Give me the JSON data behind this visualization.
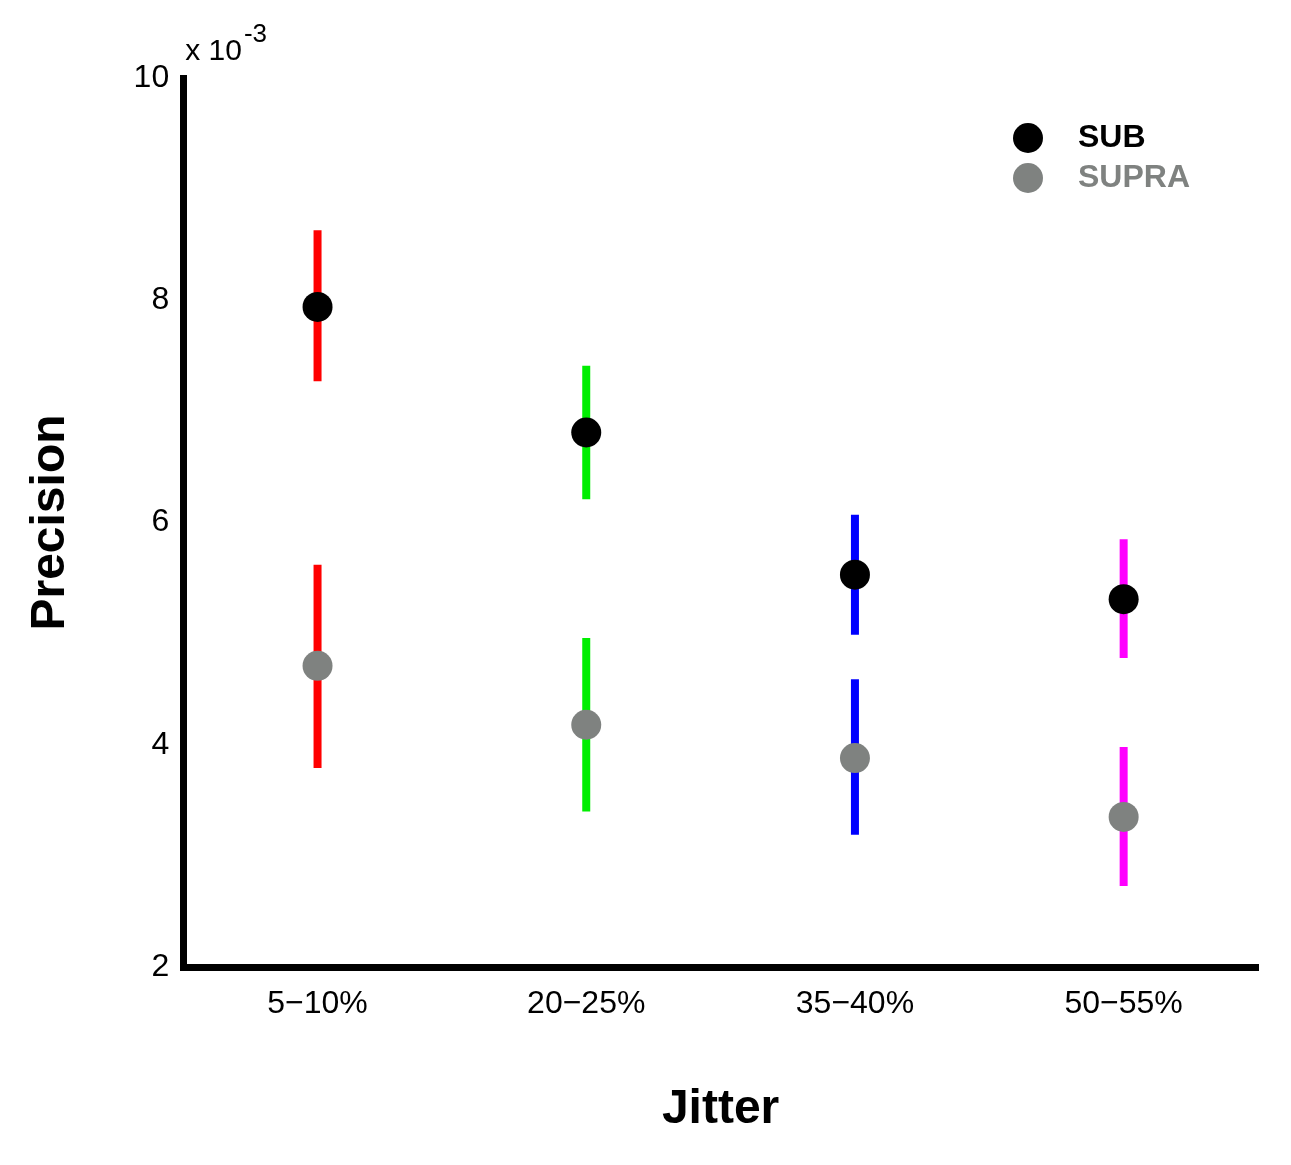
{
  "chart_data": {
    "type": "scatter",
    "xlabel": "Jitter",
    "ylabel": "Precision",
    "annotations": [
      "x 10$^{-3}$"
    ],
    "categories": [
      "5−10%",
      "20−25%",
      "35−40%",
      "50−55%"
    ],
    "colors": [
      "#ff0000",
      "#00ee00",
      "#0000ff",
      "#ff00ff"
    ],
    "series": [
      {
        "name": "SUB",
        "color": "#000000",
        "values": [
          7.94,
          6.81,
          5.53,
          5.31
        ],
        "errors": [
          [
            7.27,
            8.63
          ],
          [
            6.21,
            7.41
          ],
          [
            4.99,
            6.07
          ],
          [
            4.78,
            5.85
          ]
        ]
      },
      {
        "name": "SUPRA",
        "color": "#7f8280",
        "values": [
          4.71,
          4.18,
          3.88,
          3.35
        ],
        "errors": [
          [
            3.79,
            5.62
          ],
          [
            3.4,
            4.96
          ],
          [
            3.19,
            4.59
          ],
          [
            2.73,
            3.98
          ]
        ]
      }
    ],
    "ylim": [
      2,
      10
    ],
    "yticks": [
      2,
      4,
      6,
      8,
      10
    ],
    "grid": false,
    "legend": "top right",
    "marker": "circle"
  }
}
